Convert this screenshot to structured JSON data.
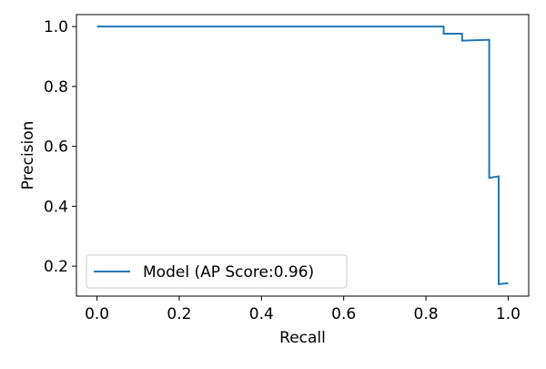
{
  "chart_data": {
    "type": "line",
    "title": "",
    "xlabel": "Recall",
    "ylabel": "Precision",
    "xlim": [
      -0.05,
      1.05
    ],
    "ylim": [
      0.1,
      1.04
    ],
    "grid": false,
    "legend_position": "lower-left",
    "x_ticks": [
      0.0,
      0.2,
      0.4,
      0.6,
      0.8,
      1.0
    ],
    "x_tick_labels": [
      "0.0",
      "0.2",
      "0.4",
      "0.6",
      "0.8",
      "1.0"
    ],
    "y_ticks": [
      0.2,
      0.4,
      0.6,
      0.8,
      1.0
    ],
    "y_tick_labels": [
      "0.2",
      "0.4",
      "0.6",
      "0.8",
      "1.0"
    ],
    "series": [
      {
        "name": "Model (AP Score:0.96)",
        "color": "#1f77b4",
        "x": [
          0.0,
          0.843,
          0.843,
          0.888,
          0.888,
          0.954,
          0.954,
          0.977,
          0.977,
          1.0
        ],
        "y": [
          1.0,
          1.0,
          0.976,
          0.976,
          0.953,
          0.956,
          0.495,
          0.5,
          0.14,
          0.143
        ]
      }
    ]
  }
}
